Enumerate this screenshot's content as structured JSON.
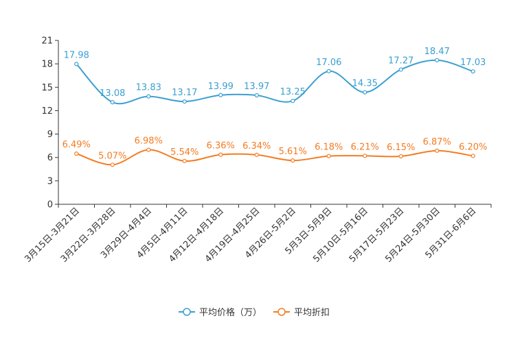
{
  "chart_data": {
    "type": "line",
    "categories": [
      "3月15日-3月21日",
      "3月22日-3月28日",
      "3月29日-4月4日",
      "4月5日-4月11日",
      "4月12日-4月18日",
      "4月19日-4月25日",
      "4月26日-5月2日",
      "5月3日-5月9日",
      "5月10日-5月16日",
      "5月17日-5月23日",
      "5月24日-5月30日",
      "5月31日-6月6日"
    ],
    "ylim": [
      0,
      21
    ],
    "yticks": [
      0,
      3,
      6,
      9,
      12,
      15,
      18,
      21
    ],
    "series": [
      {
        "name": "平均价格（万）",
        "color": "#3a9fd1",
        "values": [
          17.98,
          13.08,
          13.83,
          13.17,
          13.99,
          13.97,
          13.25,
          17.06,
          14.35,
          17.27,
          18.47,
          17.03
        ],
        "labels": [
          "17.98",
          "13.08",
          "13.83",
          "13.17",
          "13.99",
          "13.97",
          "13.25",
          "17.06",
          "14.35",
          "17.27",
          "18.47",
          "17.03"
        ]
      },
      {
        "name": "平均折扣",
        "color": "#f47b20",
        "values": [
          6.49,
          5.07,
          6.98,
          5.54,
          6.36,
          6.34,
          5.61,
          6.18,
          6.21,
          6.15,
          6.87,
          6.2
        ],
        "labels": [
          "6.49%",
          "5.07%",
          "6.98%",
          "5.54%",
          "6.36%",
          "6.34%",
          "5.61%",
          "6.18%",
          "6.21%",
          "6.15%",
          "6.87%",
          "6.20%"
        ]
      }
    ],
    "legend": "bottom-center",
    "grid": false
  }
}
